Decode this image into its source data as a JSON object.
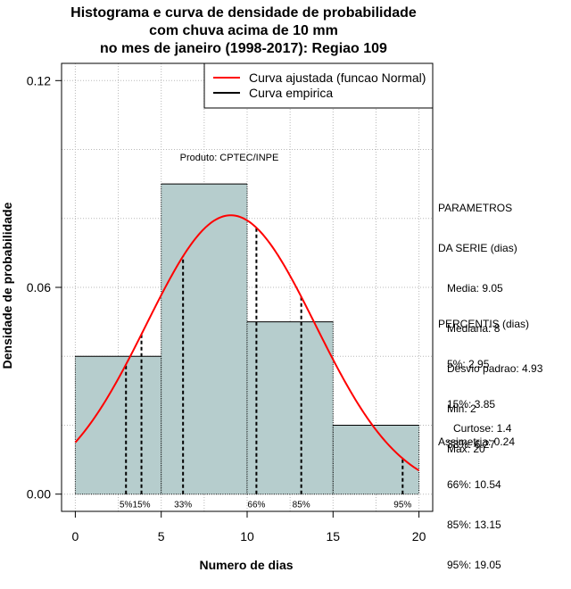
{
  "chart_data": {
    "type": "bar",
    "title_lines": [
      "Histograma e curva de densidade de probabilidade",
      "com chuva acima de 10 mm",
      "no mes de janeiro (1998-2017): Regiao 109"
    ],
    "xlabel": "Numero de dias",
    "ylabel": "Densidade de probabilidade",
    "xlim": [
      -0.8,
      20.8
    ],
    "ylim": [
      -0.005,
      0.125
    ],
    "x_ticks": [
      0,
      5,
      10,
      15,
      20
    ],
    "x_tick_labels": [
      "0",
      "5",
      "10",
      "15",
      "20"
    ],
    "y_ticks": [
      0.0,
      0.06,
      0.12
    ],
    "y_tick_labels": [
      "0.00",
      "0.06",
      "0.12"
    ],
    "grid": true,
    "histogram": {
      "bins": [
        [
          0,
          5
        ],
        [
          5,
          10
        ],
        [
          10,
          15
        ],
        [
          15,
          20
        ]
      ],
      "values": [
        0.04,
        0.09,
        0.05,
        0.02
      ],
      "fill": "#b6cdcd"
    },
    "normal_curve": {
      "mean": 9.05,
      "sd": 4.93,
      "color": "#ff0000"
    },
    "percentile_lines": [
      {
        "x": 2.95,
        "label": "5%"
      },
      {
        "x": 3.85,
        "label": "15%"
      },
      {
        "x": 6.27,
        "label": "33%"
      },
      {
        "x": 10.54,
        "label": "66%"
      },
      {
        "x": 13.15,
        "label": "85%"
      },
      {
        "x": 19.05,
        "label": "95%"
      }
    ],
    "legend": {
      "position": "top-right",
      "entries": [
        {
          "label": "Curva ajustada (funcao Normal)",
          "color": "#ff0000"
        },
        {
          "label": "Curva empirica",
          "color": "#000000"
        }
      ]
    },
    "annotation": "Produto: CPTEC/INPE"
  },
  "side_panel": {
    "parametros": [
      "PARAMETROS",
      "DA SERIE (dias)",
      "   Media: 9.05",
      "   Mediana: 8",
      "   Desvio padrao: 4.93",
      "   Min: 2",
      "   Max: 20"
    ],
    "percentis": [
      "PERCENTIS (dias)",
      "   5%: 2.95",
      "   15%: 3.85",
      "   33%: 6.27",
      "   66%: 10.54",
      "   85%: 13.15",
      "   95%: 19.05"
    ],
    "curtose": "Curtose: 1.4",
    "assimetria": "Assimetria: 0.24"
  }
}
